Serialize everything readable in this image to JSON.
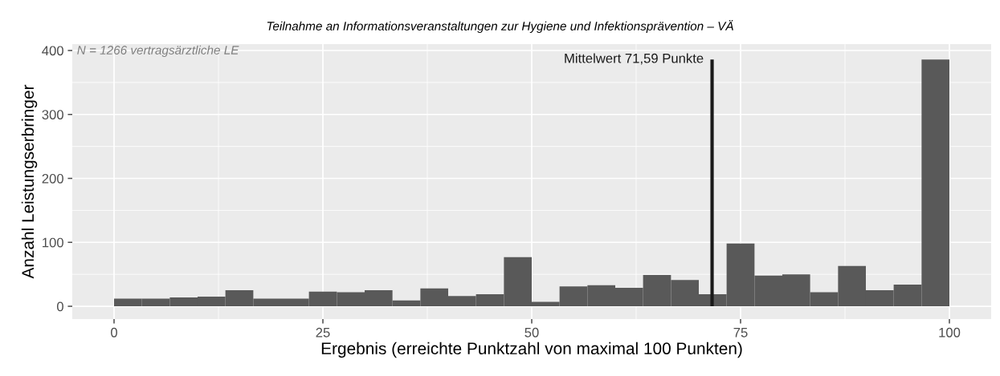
{
  "chart_data": {
    "type": "histogram",
    "title": "Teilnahme an Informationsveranstaltungen zur Hygiene und Infektionsprävention – VÄ",
    "xlabel": "Ergebnis (erreichte Punktzahl von maximal 100 Punkten)",
    "ylabel": "Anzahl Leistungserbringer",
    "bins": [
      0,
      3.33,
      6.67,
      10,
      13.33,
      16.67,
      20,
      23.33,
      26.67,
      30,
      33.33,
      36.67,
      40,
      43.33,
      46.67,
      50,
      53.33,
      56.67,
      60,
      63.33,
      66.67,
      70,
      73.33,
      76.67,
      80,
      83.33,
      86.67,
      90,
      93.33,
      96.67,
      100
    ],
    "values": [
      12,
      12,
      14,
      15,
      25,
      12,
      12,
      23,
      22,
      25,
      9,
      28,
      16,
      19,
      77,
      7,
      31,
      33,
      29,
      49,
      41,
      19,
      98,
      48,
      50,
      22,
      63,
      25,
      34,
      386
    ],
    "color": "#595959",
    "xlim": [
      -5,
      105
    ],
    "xticks": [
      0,
      25,
      50,
      75,
      100
    ],
    "ylim": [
      -20,
      410
    ],
    "yticks": [
      0,
      100,
      200,
      300,
      400
    ],
    "grid": true,
    "ref_lines": [
      {
        "axis": "x",
        "value": 71.59,
        "label": "Mittelwert 71,59 Punkte",
        "color": "#1a1a1a"
      }
    ],
    "annotations": [
      "N = 1266 vertragsärztliche LE"
    ]
  }
}
